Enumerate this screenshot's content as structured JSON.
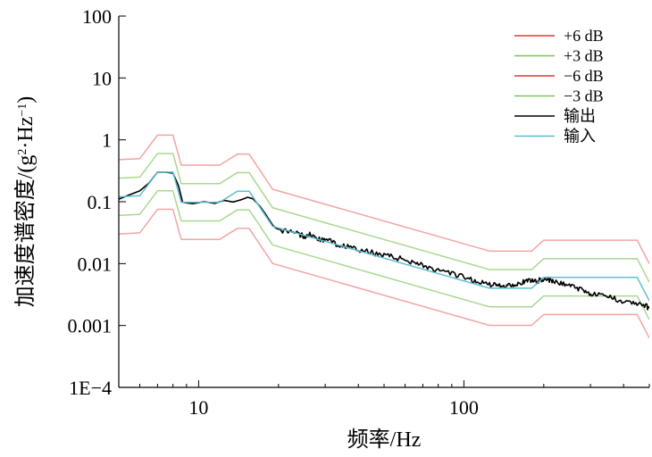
{
  "chart_data": {
    "type": "line",
    "xscale": "log",
    "yscale": "log",
    "xlim": [
      5,
      500
    ],
    "ylim": [
      0.0001,
      100
    ],
    "xlabel": "频率/Hz",
    "ylabel_main": "加速度谱密度/(g",
    "ylabel_sup1": "2",
    "ylabel_mid": "·Hz",
    "ylabel_sup2": "−1",
    "ylabel_end": ")",
    "xticks": [
      {
        "value": 10,
        "label": "10"
      },
      {
        "value": 100,
        "label": "100"
      }
    ],
    "yticks": [
      {
        "value": 0.0001,
        "label": "1E−4"
      },
      {
        "value": 0.001,
        "label": "0.001"
      },
      {
        "value": 0.01,
        "label": "0.01"
      },
      {
        "value": 0.1,
        "label": "0.1"
      },
      {
        "value": 1,
        "label": "1"
      },
      {
        "value": 10,
        "label": "10"
      },
      {
        "value": 100,
        "label": "100"
      }
    ],
    "legend_position": "top-right",
    "series": [
      {
        "name": "+6 dB",
        "color": "#f4a3a3",
        "legend_color": "#d93a35",
        "factor": 3.98,
        "style": "profile"
      },
      {
        "name": "+3 dB",
        "color": "#a9d88f",
        "legend_color": "#7cc15a",
        "factor": 2.0,
        "style": "profile"
      },
      {
        "name": "−6 dB",
        "color": "#f4a3a3",
        "legend_color": "#d93a35",
        "factor": 0.251,
        "style": "profile"
      },
      {
        "name": "−3 dB",
        "color": "#a9d88f",
        "legend_color": "#7cc15a",
        "factor": 0.5,
        "style": "profile"
      },
      {
        "name": "输出",
        "color": "#000000",
        "legend_color": "#000000",
        "style": "output"
      },
      {
        "name": "输入",
        "color": "#5fbfcf",
        "legend_color": "#5fbfcf",
        "factor": 1.0,
        "style": "profile"
      }
    ],
    "input_profile": {
      "x": [
        5,
        6,
        7,
        8,
        8.6,
        12,
        14,
        15.5,
        19,
        125,
        180,
        200,
        450,
        500
      ],
      "y": [
        0.12,
        0.125,
        0.3,
        0.3,
        0.098,
        0.098,
        0.148,
        0.148,
        0.04,
        0.004,
        0.004,
        0.006,
        0.006,
        0.0025
      ]
    },
    "output_trace": {
      "x": [
        5,
        5.5,
        6,
        6.5,
        7,
        7.5,
        8,
        8.4,
        8.7,
        9.5,
        10.5,
        11.5,
        12.5,
        13.5,
        14.5,
        15.3,
        16,
        17,
        18,
        19,
        20,
        22,
        24,
        25,
        26,
        28,
        30,
        33,
        36,
        40,
        45,
        50,
        55,
        60,
        66,
        72,
        80,
        90,
        100,
        110,
        120,
        130,
        140,
        150,
        160,
        170,
        180,
        190,
        200,
        210,
        220,
        240,
        260,
        280,
        300,
        330,
        360,
        400,
        440,
        480,
        500
      ],
      "y": [
        0.11,
        0.13,
        0.15,
        0.2,
        0.3,
        0.3,
        0.29,
        0.18,
        0.098,
        0.093,
        0.1,
        0.094,
        0.105,
        0.099,
        0.108,
        0.118,
        0.112,
        0.085,
        0.06,
        0.042,
        0.034,
        0.033,
        0.03,
        0.027,
        0.03,
        0.025,
        0.024,
        0.021,
        0.019,
        0.0165,
        0.015,
        0.014,
        0.0125,
        0.0115,
        0.0105,
        0.009,
        0.0075,
        0.0068,
        0.006,
        0.0052,
        0.0048,
        0.0045,
        0.0043,
        0.0046,
        0.0048,
        0.005,
        0.0054,
        0.0052,
        0.0058,
        0.0054,
        0.005,
        0.0047,
        0.0042,
        0.0038,
        0.0033,
        0.003,
        0.0028,
        0.0025,
        0.0023,
        0.0021,
        0.0019
      ]
    }
  }
}
